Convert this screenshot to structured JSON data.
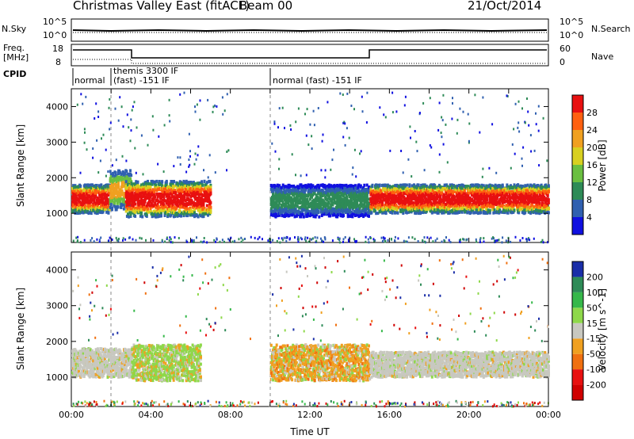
{
  "header": {
    "title": "Christmas Valley East (fitACF)",
    "beam": "Beam 00",
    "date": "21/Oct/2014"
  },
  "strips": {
    "noise_left": "N.Sky",
    "noise_left_ticks": [
      "10^5",
      "10^0"
    ],
    "noise_right": "N.Search",
    "noise_right_ticks": [
      "10^5",
      "10^0"
    ],
    "freq_left": "Freq.",
    "freq_units": "[MHz]",
    "freq_ticks": [
      "18",
      "8"
    ],
    "nave_right": "Nave",
    "nave_ticks": [
      "60",
      "0"
    ],
    "cpid": "CPID"
  },
  "modes": [
    "normal",
    "themis 3300 IF",
    "(fast) -151 IF",
    "normal (fast) -151 IF"
  ],
  "chart_data": [
    {
      "type": "heatmap",
      "ylabel": "Slant Range [km]",
      "xlabel": "Time UT",
      "x_ticks": [
        "00:00",
        "04:00",
        "08:00",
        "12:00",
        "16:00",
        "20:00",
        "00:00"
      ],
      "y_ticks": [
        1000,
        2000,
        3000,
        4000
      ],
      "ylim": [
        180,
        4500
      ],
      "xlim_hours": [
        0,
        24
      ],
      "colorbar_label": "Power [dB]",
      "colorbar_ticks": [
        4,
        8,
        12,
        16,
        20,
        24,
        28
      ],
      "colorbar_colors": [
        "#1010e0",
        "#3060b0",
        "#2e8b57",
        "#6abf40",
        "#d8d020",
        "#f0a020",
        "#ff6010",
        "#e81010"
      ],
      "bands": [
        {
          "t0": 0.0,
          "t1": 1.9,
          "r0": 1000,
          "r1": 1800,
          "level": "high"
        },
        {
          "t0": 1.9,
          "t1": 3.0,
          "r0": 1100,
          "r1": 2200,
          "level": "mid"
        },
        {
          "t0": 2.7,
          "t1": 7.0,
          "r0": 900,
          "r1": 1900,
          "level": "high"
        },
        {
          "t0": 10.0,
          "t1": 15.0,
          "r0": 900,
          "r1": 1800,
          "level": "low"
        },
        {
          "t0": 15.0,
          "t1": 24.0,
          "r0": 1000,
          "r1": 1800,
          "level": "high"
        }
      ]
    },
    {
      "type": "heatmap",
      "ylabel": "Slant Range [km]",
      "xlabel": "Time UT",
      "x_ticks": [
        "00:00",
        "04:00",
        "08:00",
        "12:00",
        "16:00",
        "20:00",
        "00:00"
      ],
      "y_ticks": [
        1000,
        2000,
        3000,
        4000
      ],
      "ylim": [
        180,
        4500
      ],
      "xlim_hours": [
        0,
        24
      ],
      "colorbar_label": "Velocity [m s^-1]",
      "colorbar_ticks": [
        "200",
        "100",
        "50",
        "15",
        "-15",
        "-50",
        "-100",
        "-200"
      ],
      "colorbar_colors": [
        "#1a2ea8",
        "#2e8b57",
        "#36b84a",
        "#8ed84a",
        "#c8c8c0",
        "#f0a020",
        "#f07010",
        "#e81010",
        "#d00000"
      ],
      "bands": [
        {
          "t0": 0.0,
          "t1": 3.0,
          "r0": 1000,
          "r1": 1800,
          "level": "grey"
        },
        {
          "t0": 3.0,
          "t1": 6.5,
          "r0": 900,
          "r1": 1900,
          "level": "green"
        },
        {
          "t0": 10.0,
          "t1": 15.0,
          "r0": 900,
          "r1": 1900,
          "level": "orange"
        },
        {
          "t0": 15.0,
          "t1": 24.0,
          "r0": 1000,
          "r1": 1700,
          "level": "grey"
        }
      ]
    }
  ]
}
